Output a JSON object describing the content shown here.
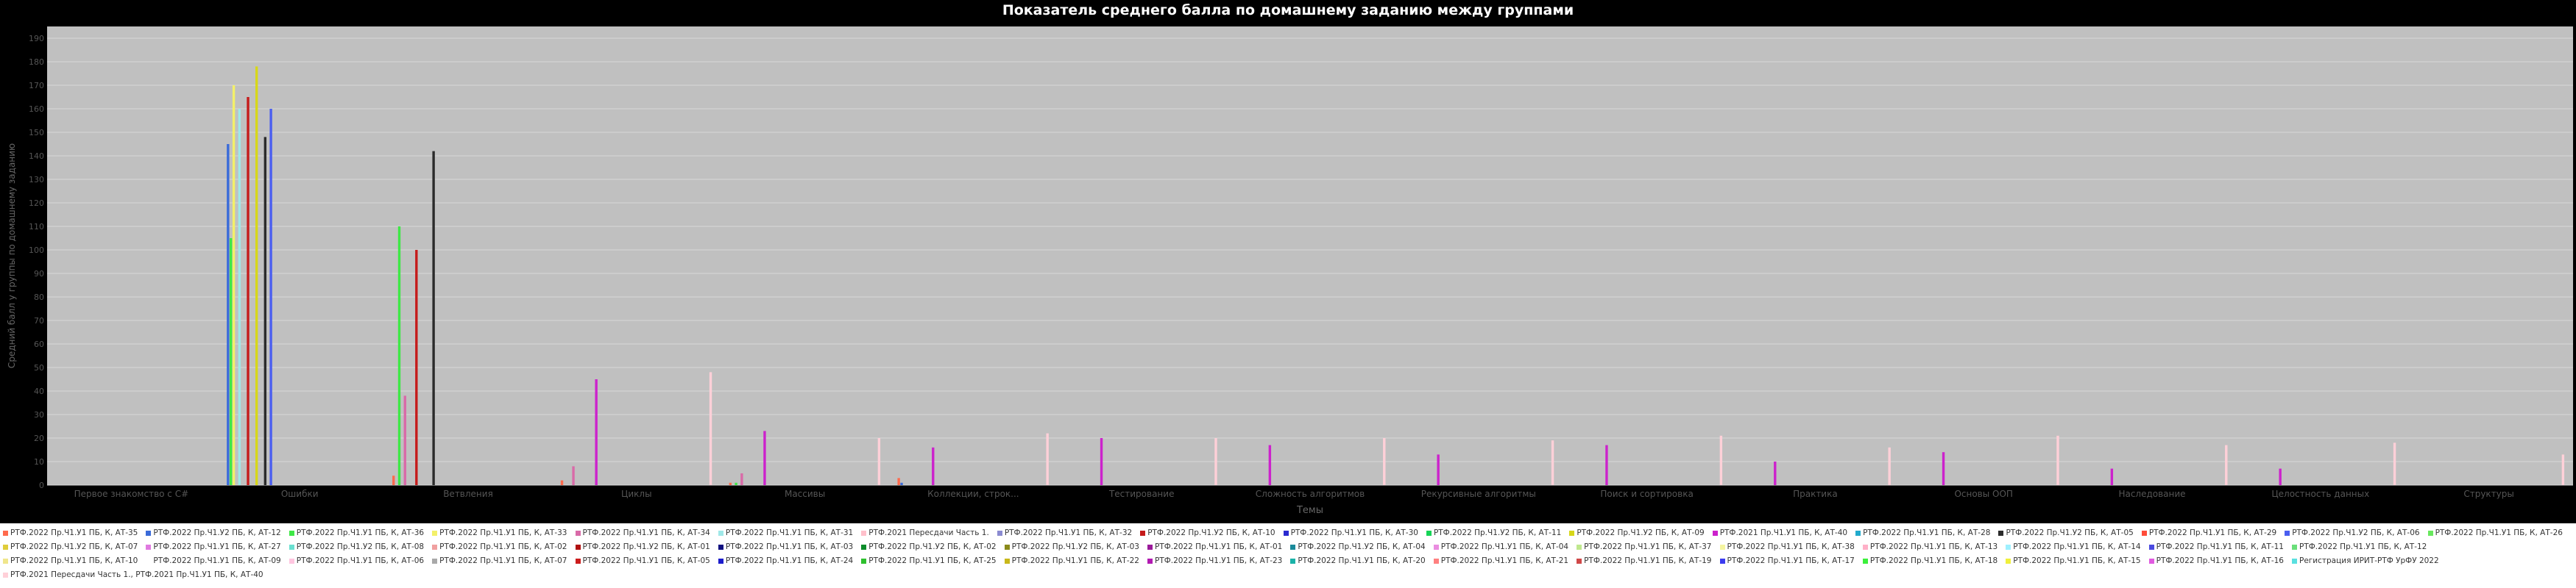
{
  "chart_data": {
    "type": "bar",
    "title": "Показатель среднего балла по домашнему заданию между группами",
    "xlabel": "Темы",
    "ylabel": "Средний балл у группы по домашнему заданию",
    "ylim": [
      0,
      195
    ],
    "yticks": [
      0,
      10,
      20,
      30,
      40,
      50,
      60,
      70,
      80,
      90,
      100,
      110,
      120,
      130,
      140,
      150,
      160,
      170,
      180,
      190
    ],
    "grid": true,
    "legend_position": "bottom",
    "categories": [
      "Первое знакомство с C#",
      "Ошибки",
      "Ветвления",
      "Циклы",
      "Массивы",
      "Коллекции, строк...",
      "Тестирование",
      "Сложность алгоритмов",
      "Рекурсивные алгоритмы",
      "Поиск и сортировка",
      "Практика",
      "Основы ООП",
      "Наследование",
      "Целостность данных",
      "Структуры"
    ],
    "series": [
      {
        "name": "РТФ.2022 Пр.Ч1.У1 ПБ, К, АТ-35",
        "color": "#ff6a4d",
        "values": [
          0,
          0,
          4,
          2,
          1,
          3,
          0,
          0,
          0,
          0,
          0,
          0,
          0,
          0,
          0
        ]
      },
      {
        "name": "РТФ.2022 Пр.Ч1.У2 ПБ, К, АТ-12",
        "color": "#3a6bd9",
        "values": [
          0,
          145,
          0,
          0,
          0,
          1,
          0,
          0,
          0,
          0,
          0,
          0,
          0,
          0,
          0
        ]
      },
      {
        "name": "РТФ.2022 Пр.Ч1.У1 ПБ, К, АТ-36",
        "color": "#3ee846",
        "values": [
          0,
          105,
          110,
          0,
          1,
          0,
          0,
          0,
          0,
          0,
          0,
          0,
          0,
          0,
          0
        ]
      },
      {
        "name": "РТФ.2022 Пр.Ч1.У1 ПБ, К, АТ-33",
        "color": "#f3f069",
        "values": [
          0,
          170,
          0,
          0,
          0,
          0,
          0,
          0,
          0,
          0,
          0,
          0,
          0,
          0,
          0
        ]
      },
      {
        "name": "РТФ.2022 Пр.Ч1.У1 ПБ, К, АТ-34",
        "color": "#d96aa8",
        "values": [
          0,
          0,
          38,
          8,
          5,
          0,
          0,
          0,
          0,
          0,
          0,
          0,
          0,
          0,
          0
        ]
      },
      {
        "name": "РТФ.2022 Пр.Ч1.У1 ПБ, К, АТ-31",
        "color": "#9fe8e8",
        "values": [
          0,
          160,
          0,
          0,
          0,
          0,
          0,
          0,
          0,
          0,
          0,
          0,
          0,
          0,
          0
        ]
      },
      {
        "name": "РТФ.2021 Пересдачи Часть 1.",
        "color": "#ffc0cb",
        "values": [
          0,
          0,
          0,
          0,
          0,
          0,
          0,
          0,
          0,
          0,
          0,
          0,
          0,
          0,
          0
        ]
      },
      {
        "name": "РТФ.2022 Пр.Ч1.У1 ПБ, К, АТ-32",
        "color": "#8b8bd1",
        "values": [
          0,
          0,
          0,
          0,
          0,
          0,
          0,
          0,
          0,
          0,
          0,
          0,
          0,
          0,
          0
        ]
      },
      {
        "name": "РТФ.2022 Пр.Ч1.У2 ПБ, К, АТ-10",
        "color": "#c51b1b",
        "values": [
          0,
          165,
          100,
          0,
          0,
          0,
          0,
          0,
          0,
          0,
          0,
          0,
          0,
          0,
          0
        ]
      },
      {
        "name": "РТФ.2022 Пр.Ч1.У1 ПБ, К, АТ-30",
        "color": "#2a2ad0",
        "values": [
          0,
          0,
          0,
          0,
          0,
          0,
          0,
          0,
          0,
          0,
          0,
          0,
          0,
          0,
          0
        ]
      },
      {
        "name": "РТФ.2022 Пр.Ч1.У2 ПБ, К, АТ-11",
        "color": "#16d456",
        "values": [
          0,
          0,
          0,
          0,
          0,
          0,
          0,
          0,
          0,
          0,
          0,
          0,
          0,
          0,
          0
        ]
      },
      {
        "name": "РТФ.2022 Пр.Ч1.У2 ПБ, К, АТ-09",
        "color": "#d7d719",
        "values": [
          0,
          178,
          0,
          0,
          0,
          0,
          0,
          0,
          0,
          0,
          0,
          0,
          0,
          0,
          0
        ]
      },
      {
        "name": "РТФ.2021 Пр.Ч1.У1 ПБ, К, АТ-40",
        "color": "#cc22cc",
        "values": [
          0,
          0,
          0,
          45,
          23,
          16,
          20,
          17,
          13,
          17,
          10,
          14,
          7,
          7,
          0
        ]
      },
      {
        "name": "РТФ.2022 Пр.Ч1.У1 ПБ, К, АТ-28",
        "color": "#22aacc",
        "values": [
          0,
          0,
          0,
          0,
          0,
          0,
          0,
          0,
          0,
          0,
          0,
          0,
          0,
          0,
          0
        ]
      },
      {
        "name": "РТФ.2022 Пр.Ч1.У2 ПБ, К, АТ-05",
        "color": "#2b2b2b",
        "values": [
          0,
          148,
          142,
          0,
          0,
          0,
          0,
          0,
          0,
          0,
          0,
          0,
          0,
          0,
          0
        ]
      },
      {
        "name": "РТФ.2022 Пр.Ч1.У1 ПБ, К, АТ-29",
        "color": "#ff4c3a",
        "values": [
          0,
          0,
          0,
          0,
          0,
          0,
          0,
          0,
          0,
          0,
          0,
          0,
          0,
          0,
          0
        ]
      },
      {
        "name": "РТФ.2022 Пр.Ч1.У2 ПБ, К, АТ-06",
        "color": "#4a5ef0",
        "values": [
          0,
          160,
          0,
          0,
          0,
          0,
          0,
          0,
          0,
          0,
          0,
          0,
          0,
          0,
          0
        ]
      },
      {
        "name": "РТФ.2022 Пр.Ч1.У1 ПБ, К, АТ-26",
        "color": "#69e85e",
        "values": [
          0,
          0,
          0,
          0,
          0,
          0,
          0,
          0,
          0,
          0,
          0,
          0,
          0,
          0,
          0
        ]
      },
      {
        "name": "РТФ.2022 Пр.Ч1.У2 ПБ, К, АТ-07",
        "color": "#e0cd3a",
        "values": [
          0,
          0,
          0,
          0,
          0,
          0,
          0,
          0,
          0,
          0,
          0,
          0,
          0,
          0,
          0
        ]
      },
      {
        "name": "РТФ.2022 Пр.Ч1.У1 ПБ, К, АТ-27",
        "color": "#e07ae0",
        "values": [
          0,
          0,
          0,
          0,
          0,
          0,
          0,
          0,
          0,
          0,
          0,
          0,
          0,
          0,
          0
        ]
      },
      {
        "name": "РТФ.2022 Пр.Ч1.У2 ПБ, К, АТ-08",
        "color": "#6ae0d0",
        "values": [
          0,
          0,
          0,
          0,
          0,
          0,
          0,
          0,
          0,
          0,
          0,
          0,
          0,
          0,
          0
        ]
      },
      {
        "name": "РТФ.2022 Пр.Ч1.У1 ПБ, К, АТ-02",
        "color": "#f0a0a0",
        "values": [
          0,
          0,
          0,
          0,
          0,
          0,
          0,
          0,
          0,
          0,
          0,
          0,
          0,
          0,
          0
        ]
      },
      {
        "name": "РТФ.2022 Пр.Ч1.У2 ПБ, К, АТ-01",
        "color": "#b01010",
        "values": [
          0,
          0,
          0,
          0,
          0,
          0,
          0,
          0,
          0,
          0,
          0,
          0,
          0,
          0,
          0
        ]
      },
      {
        "name": "РТФ.2022 Пр.Ч1.У1 ПБ, К, АТ-03",
        "color": "#101080",
        "values": [
          0,
          0,
          0,
          0,
          0,
          0,
          0,
          0,
          0,
          0,
          0,
          0,
          0,
          0,
          0
        ]
      },
      {
        "name": "РТФ.2022 Пр.Ч1.У2 ПБ, К, АТ-02",
        "color": "#0c8c2a",
        "values": [
          0,
          0,
          0,
          0,
          0,
          0,
          0,
          0,
          0,
          0,
          0,
          0,
          0,
          0,
          0
        ]
      },
      {
        "name": "РТФ.2022 Пр.Ч1.У2 ПБ, К, АТ-03",
        "color": "#8a8a1a",
        "values": [
          0,
          0,
          0,
          0,
          0,
          0,
          0,
          0,
          0,
          0,
          0,
          0,
          0,
          0,
          0
        ]
      },
      {
        "name": "РТФ.2022 Пр.Ч1.У1 ПБ, К, АТ-01",
        "color": "#9a1a9a",
        "values": [
          0,
          0,
          0,
          0,
          0,
          0,
          0,
          0,
          0,
          0,
          0,
          0,
          0,
          0,
          0
        ]
      },
      {
        "name": "РТФ.2022 Пр.Ч1.У2 ПБ, К, АТ-04",
        "color": "#1a8a9a",
        "values": [
          0,
          0,
          0,
          0,
          0,
          0,
          0,
          0,
          0,
          0,
          0,
          0,
          0,
          0,
          0
        ]
      },
      {
        "name": "РТФ.2022 Пр.Ч1.У1 ПБ, К, АТ-04",
        "color": "#ea8de0",
        "values": [
          0,
          0,
          0,
          0,
          0,
          0,
          0,
          0,
          0,
          0,
          0,
          0,
          0,
          0,
          0
        ]
      },
      {
        "name": "РТФ.2022 Пр.Ч1.У1 ПБ, К, АТ-37",
        "color": "#bfe88e",
        "values": [
          0,
          0,
          0,
          0,
          0,
          0,
          0,
          0,
          0,
          0,
          0,
          0,
          0,
          0,
          0
        ]
      },
      {
        "name": "РТФ.2022 Пр.Ч1.У1 ПБ, К, АТ-38",
        "color": "#f5f5a0",
        "values": [
          0,
          0,
          0,
          0,
          0,
          0,
          0,
          0,
          0,
          0,
          0,
          0,
          0,
          0,
          0
        ]
      },
      {
        "name": "РТФ.2022 Пр.Ч1.У1 ПБ, К, АТ-13",
        "color": "#ffb0c8",
        "values": [
          0,
          0,
          0,
          0,
          0,
          0,
          0,
          0,
          0,
          0,
          0,
          0,
          0,
          0,
          0
        ]
      },
      {
        "name": "РТФ.2022 Пр.Ч1.У1 ПБ, К, АТ-14",
        "color": "#9ef0ff",
        "values": [
          0,
          0,
          0,
          0,
          0,
          0,
          0,
          0,
          0,
          0,
          0,
          0,
          0,
          0,
          0
        ]
      },
      {
        "name": "РТФ.2022 Пр.Ч1.У1 ПБ, К, АТ-11",
        "color": "#4a4ae0",
        "values": [
          0,
          0,
          0,
          0,
          0,
          0,
          0,
          0,
          0,
          0,
          0,
          0,
          0,
          0,
          0
        ]
      },
      {
        "name": "РТФ.2022 Пр.Ч1.У1 ПБ, К, АТ-12",
        "color": "#6adf7a",
        "values": [
          0,
          0,
          0,
          0,
          0,
          0,
          0,
          0,
          0,
          0,
          0,
          0,
          0,
          0,
          0
        ]
      },
      {
        "name": "РТФ.2022 Пр.Ч1.У1 ПБ, К, АТ-10",
        "color": "#f0e68c",
        "values": [
          0,
          0,
          0,
          0,
          0,
          0,
          0,
          0,
          0,
          0,
          0,
          0,
          0,
          0,
          0
        ]
      },
      {
        "name": "РТФ.2022 Пр.Ч1.У1 ПБ, К, АТ-09",
        "color": "#ffffff",
        "values": [
          0,
          0,
          0,
          0,
          0,
          0,
          0,
          0,
          0,
          0,
          0,
          0,
          0,
          0,
          0
        ]
      },
      {
        "name": "РТФ.2022 Пр.Ч1.У1 ПБ, К, АТ-06",
        "color": "#ffc6e0",
        "values": [
          0,
          0,
          0,
          0,
          0,
          0,
          0,
          0,
          0,
          0,
          0,
          0,
          0,
          0,
          0
        ]
      },
      {
        "name": "РТФ.2022 Пр.Ч1.У1 ПБ, К, АТ-07",
        "color": "#a9a9a9",
        "values": [
          0,
          0,
          0,
          0,
          0,
          0,
          0,
          0,
          0,
          0,
          0,
          0,
          0,
          0,
          0
        ]
      },
      {
        "name": "РТФ.2022 Пр.Ч1.У1 ПБ, К, АТ-05",
        "color": "#cc1c1c",
        "values": [
          0,
          0,
          0,
          0,
          0,
          0,
          0,
          0,
          0,
          0,
          0,
          0,
          0,
          0,
          0
        ]
      },
      {
        "name": "РТФ.2022 Пр.Ч1.У1 ПБ, К, АТ-24",
        "color": "#1c1ccc",
        "values": [
          0,
          0,
          0,
          0,
          0,
          0,
          0,
          0,
          0,
          0,
          0,
          0,
          0,
          0,
          0
        ]
      },
      {
        "name": "РТФ.2022 Пр.Ч1.У1 ПБ, К, АТ-25",
        "color": "#2ec02e",
        "values": [
          0,
          0,
          0,
          0,
          0,
          0,
          0,
          0,
          0,
          0,
          0,
          0,
          0,
          0,
          0
        ]
      },
      {
        "name": "РТФ.2022 Пр.Ч1.У1 ПБ, К, АТ-22",
        "color": "#c9b81a",
        "values": [
          0,
          0,
          0,
          0,
          0,
          0,
          0,
          0,
          0,
          0,
          0,
          0,
          0,
          0,
          0
        ]
      },
      {
        "name": "РТФ.2022 Пр.Ч1.У1 ПБ, К, АТ-23",
        "color": "#b21ab2",
        "values": [
          0,
          0,
          0,
          0,
          0,
          0,
          0,
          0,
          0,
          0,
          0,
          0,
          0,
          0,
          0
        ]
      },
      {
        "name": "РТФ.2022 Пр.Ч1.У1 ПБ, К, АТ-20",
        "color": "#1ab2a8",
        "values": [
          0,
          0,
          0,
          0,
          0,
          0,
          0,
          0,
          0,
          0,
          0,
          0,
          0,
          0,
          0
        ]
      },
      {
        "name": "РТФ.2022 Пр.Ч1.У1 ПБ, К, АТ-21",
        "color": "#ff8080",
        "values": [
          0,
          0,
          0,
          0,
          0,
          0,
          0,
          0,
          0,
          0,
          0,
          0,
          0,
          0,
          0
        ]
      },
      {
        "name": "РТФ.2022 Пр.Ч1.У1 ПБ, К, АТ-19",
        "color": "#d04848",
        "values": [
          0,
          0,
          0,
          0,
          0,
          0,
          0,
          0,
          0,
          0,
          0,
          0,
          0,
          0,
          0
        ]
      },
      {
        "name": "РТФ.2022 Пр.Ч1.У1 ПБ, К, АТ-17",
        "color": "#3c3cf0",
        "values": [
          0,
          0,
          0,
          0,
          0,
          0,
          0,
          0,
          0,
          0,
          0,
          0,
          0,
          0,
          0
        ]
      },
      {
        "name": "РТФ.2022 Пр.Ч1.У1 ПБ, К, АТ-18",
        "color": "#3cf03c",
        "values": [
          0,
          0,
          0,
          0,
          0,
          0,
          0,
          0,
          0,
          0,
          0,
          0,
          0,
          0,
          0
        ]
      },
      {
        "name": "РТФ.2022 Пр.Ч1.У1 ПБ, К, АТ-15",
        "color": "#f0f03c",
        "values": [
          0,
          0,
          0,
          0,
          0,
          0,
          0,
          0,
          0,
          0,
          0,
          0,
          0,
          0,
          0
        ]
      },
      {
        "name": "РТФ.2022 Пр.Ч1.У1 ПБ, К, АТ-16",
        "color": "#e05ae0",
        "values": [
          0,
          0,
          0,
          0,
          0,
          0,
          0,
          0,
          0,
          0,
          0,
          0,
          0,
          0,
          0
        ]
      },
      {
        "name": "Регистрация ИРИТ-РТФ УрФУ 2022",
        "color": "#5ae0e0",
        "values": [
          0,
          0,
          0,
          0,
          0,
          0,
          0,
          0,
          0,
          0,
          0,
          0,
          0,
          0,
          0
        ]
      },
      {
        "name": "РТФ.2021 Пересдачи Часть 1., РТФ.2021 Пр.Ч1.У1 ПБ, К, АТ-40",
        "color": "#ffd0d8",
        "values": [
          0,
          0,
          0,
          48,
          20,
          22,
          20,
          20,
          19,
          21,
          16,
          21,
          17,
          18,
          13
        ]
      }
    ]
  }
}
